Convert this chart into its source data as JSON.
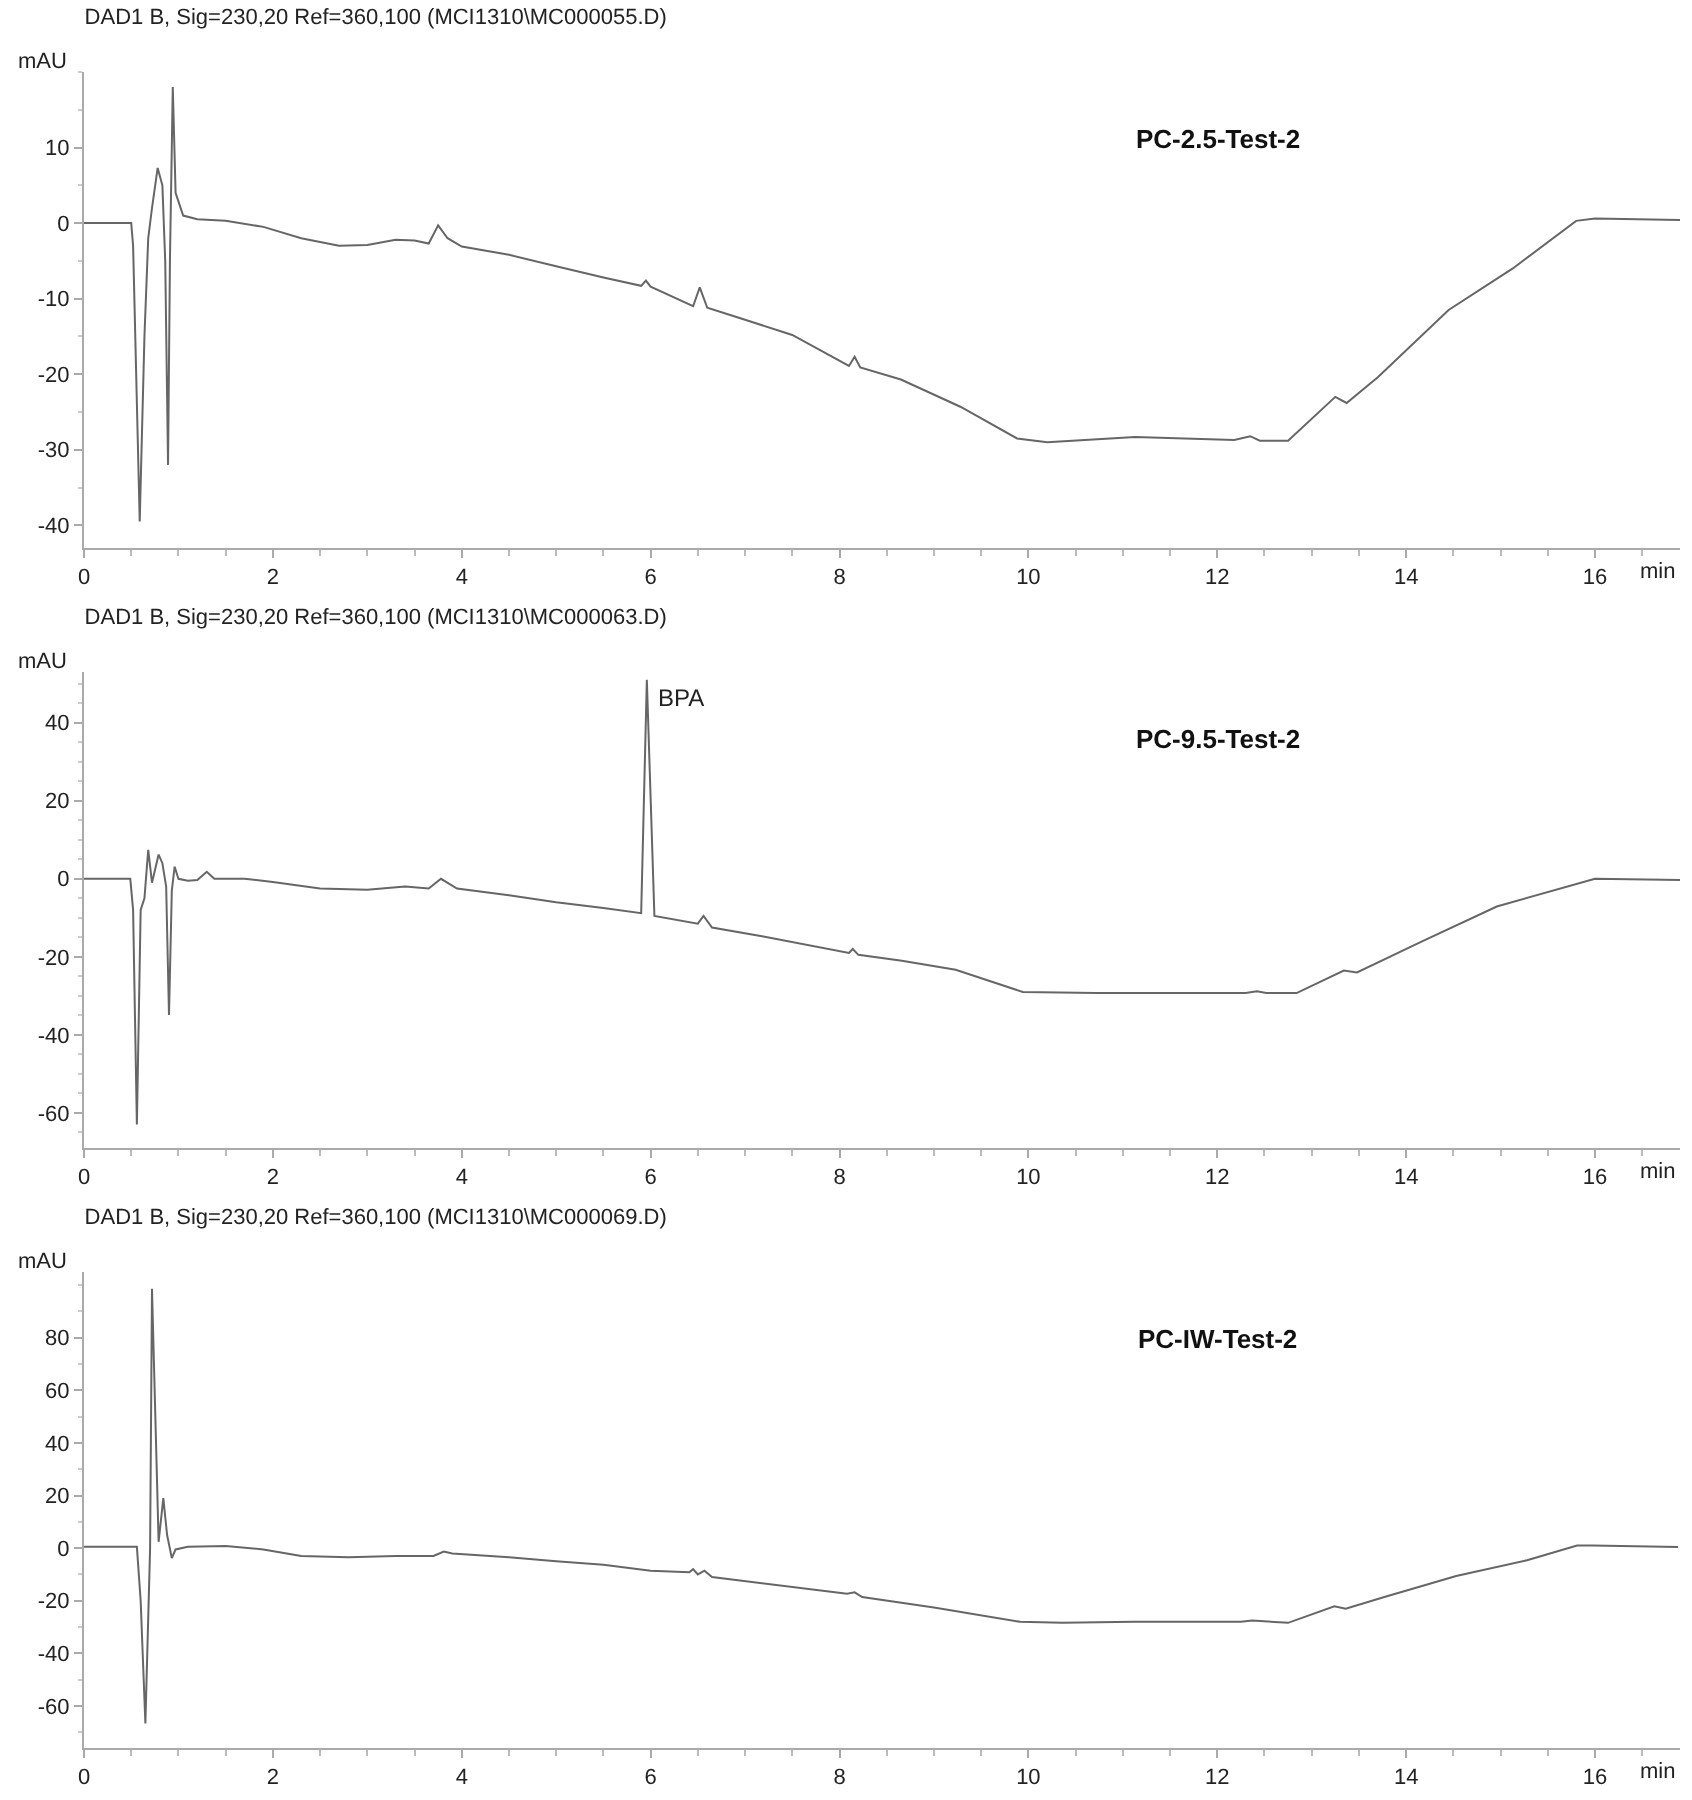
{
  "chart_data": [
    {
      "type": "line",
      "title": "DAD1 B, Sig=230,20 Ref=360,100 (MCI1310\\MC000055.D)",
      "xlabel": "min",
      "ylabel": "mAU",
      "annotations": [
        "PC-2.5-Test-2"
      ],
      "xlim": [
        0,
        16.9
      ],
      "xticks": [
        0,
        2,
        4,
        6,
        8,
        10,
        12,
        14,
        16
      ],
      "ylim": [
        -43,
        20
      ],
      "yticks": [
        -40,
        -30,
        -20,
        -10,
        0,
        10
      ],
      "x": [
        0,
        0.5,
        0.52,
        0.59,
        0.64,
        0.68,
        0.72,
        0.78,
        0.83,
        0.86,
        0.89,
        0.91,
        0.94,
        0.97,
        1.05,
        1.2,
        1.5,
        1.9,
        2.3,
        2.7,
        3.0,
        3.3,
        3.5,
        3.65,
        3.75,
        3.85,
        4,
        4.5,
        5,
        5.5,
        5.9,
        5.95,
        6.0,
        6.45,
        6.52,
        6.6,
        7,
        7.5,
        8.1,
        8.16,
        8.22,
        8.65,
        9.28,
        9.88,
        10.2,
        11.13,
        12.18,
        12.35,
        12.45,
        12.75,
        13.25,
        13.37,
        13.7,
        14.45,
        15.13,
        15.8,
        16.0,
        16.9
      ],
      "series": [
        {
          "color": "#666666",
          "values": [
            0,
            0,
            -3,
            -39.5,
            -15,
            -2,
            2,
            7.3,
            5,
            -5,
            -32,
            -5,
            18,
            4,
            1,
            0.5,
            0.3,
            -0.5,
            -2,
            -3,
            -2.9,
            -2.2,
            -2.3,
            -2.7,
            -0.3,
            -2,
            -3.1,
            -4.2,
            -5.7,
            -7.2,
            -8.3,
            -7.6,
            -8.4,
            -11,
            -8.5,
            -11.2,
            -12.8,
            -14.8,
            -18.9,
            -17.7,
            -19.1,
            -20.7,
            -24.3,
            -28.5,
            -29,
            -28.3,
            -28.7,
            -28.2,
            -28.8,
            -28.8,
            -23,
            -23.8,
            -20.4,
            -11.5,
            -6,
            0.3,
            0.6,
            0.4
          ]
        }
      ]
    },
    {
      "type": "line",
      "title": "DAD1 B, Sig=230,20 Ref=360,100 (MCI1310\\MC000063.D)",
      "xlabel": "min",
      "ylabel": "mAU",
      "annotations": [
        "PC-9.5-Test-2",
        {
          "text": "BPA",
          "x": 5.96,
          "y": 51
        }
      ],
      "xlim": [
        0,
        16.9
      ],
      "xticks": [
        0,
        2,
        4,
        6,
        8,
        10,
        12,
        14,
        16
      ],
      "ylim": [
        -69,
        53
      ],
      "yticks": [
        -60,
        -40,
        -20,
        0,
        20,
        40
      ],
      "x": [
        0,
        0.49,
        0.52,
        0.56,
        0.6,
        0.64,
        0.68,
        0.72,
        0.79,
        0.83,
        0.87,
        0.9,
        0.93,
        0.96,
        1.0,
        1.1,
        1.2,
        1.3,
        1.38,
        1.7,
        2,
        2.5,
        3.0,
        3.4,
        3.65,
        3.78,
        3.95,
        4.5,
        5,
        5.5,
        5.9,
        5.96,
        6.04,
        6.5,
        6.56,
        6.65,
        7.18,
        8.1,
        8.14,
        8.2,
        8.66,
        9.23,
        9.94,
        10.72,
        12.3,
        12.42,
        12.52,
        12.84,
        13.34,
        13.48,
        14.18,
        14.96,
        16.0,
        16.9
      ],
      "series": [
        {
          "color": "#666666",
          "values": [
            0,
            0,
            -8,
            -63,
            -8,
            -5,
            7.4,
            -1,
            6.2,
            4,
            -2,
            -34.9,
            -3,
            3.1,
            0,
            -0.5,
            -0.3,
            1.8,
            0,
            0,
            -0.8,
            -2.5,
            -2.8,
            -2,
            -2.5,
            0,
            -2.5,
            -4.2,
            -6,
            -7.5,
            -8.8,
            51,
            -9.5,
            -11.5,
            -9.5,
            -12.5,
            -14.7,
            -19,
            -18,
            -19.5,
            -21,
            -23.3,
            -29,
            -29.3,
            -29.3,
            -28.8,
            -29.3,
            -29.3,
            -23.5,
            -24,
            -15.9,
            -7.1,
            0,
            -0.3
          ]
        }
      ]
    },
    {
      "type": "line",
      "title": "DAD1 B, Sig=230,20 Ref=360,100 (MCI1310\\MC000069.D)",
      "xlabel": "min",
      "ylabel": "mAU",
      "annotations": [
        "PC-IW-Test-2"
      ],
      "xlim": [
        0,
        16.9
      ],
      "xticks": [
        0,
        2,
        4,
        6,
        8,
        10,
        12,
        14,
        16
      ],
      "ylim": [
        -76,
        105
      ],
      "yticks": [
        -60,
        -40,
        -20,
        0,
        20,
        40,
        60,
        80
      ],
      "x": [
        0,
        0.56,
        0.6,
        0.65,
        0.7,
        0.72,
        0.77,
        0.79,
        0.84,
        0.88,
        0.93,
        0.97,
        1.1,
        1.5,
        1.9,
        2.3,
        2.8,
        3.3,
        3.7,
        3.81,
        3.9,
        4.5,
        5,
        5.5,
        6.0,
        6.41,
        6.45,
        6.5,
        6.57,
        6.65,
        8.08,
        8.16,
        8.24,
        9.0,
        9.91,
        10.36,
        11.12,
        12.25,
        12.37,
        12.75,
        13.24,
        13.36,
        13.77,
        14.53,
        15.28,
        15.81,
        15.97,
        16.88
      ],
      "series": [
        {
          "color": "#666666",
          "values": [
            0.5,
            0.5,
            -20,
            -66.7,
            0,
            98.6,
            30,
            2.4,
            19,
            5,
            -3.8,
            -0.5,
            0.5,
            0.8,
            -0.5,
            -3,
            -3.5,
            -3,
            -3,
            -1.3,
            -2,
            -3.5,
            -5,
            -6.3,
            -8.6,
            -9.2,
            -8,
            -10,
            -8.6,
            -11,
            -17.3,
            -16.8,
            -18.6,
            -22.6,
            -28,
            -28.4,
            -28,
            -28,
            -27.5,
            -28.4,
            -22.1,
            -23,
            -18.6,
            -10.6,
            -4.6,
            1,
            1,
            0.4
          ]
        }
      ]
    }
  ]
}
